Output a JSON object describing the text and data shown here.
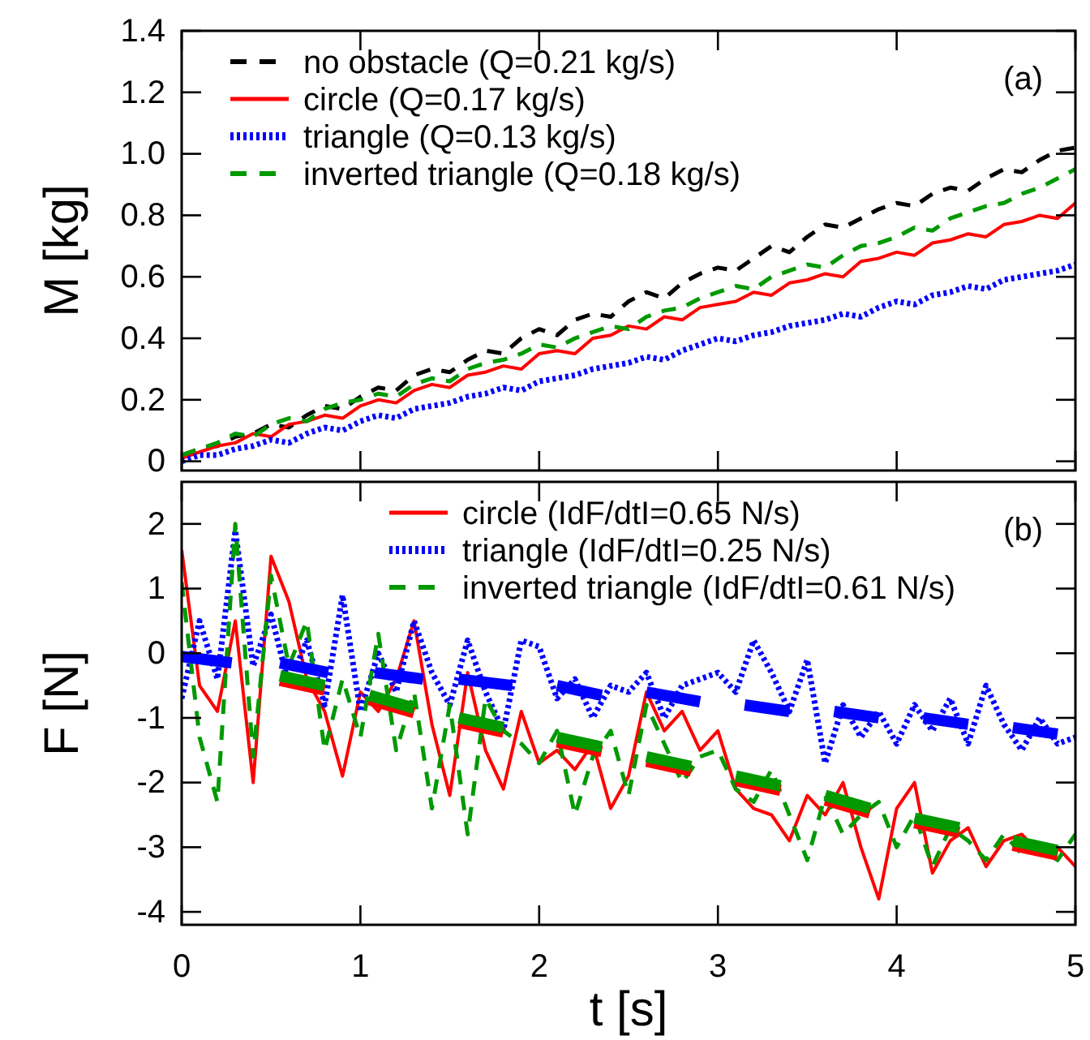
{
  "chart_data": [
    {
      "type": "line",
      "ylabel": "M [kg]",
      "annotations": [
        "(a)"
      ],
      "legend": "top left",
      "grid": false,
      "tick_labels": "y",
      "xlim": [
        0,
        5
      ],
      "xticks": [
        0,
        1,
        2,
        3,
        4,
        5
      ],
      "ylim": [
        -0.03,
        1.4
      ],
      "yticks": [
        0,
        {
          "value": 0.2,
          "label": "0.2"
        },
        {
          "value": 0.4,
          "label": "0.4"
        },
        {
          "value": 0.6,
          "label": "0.6"
        },
        {
          "value": 0.8,
          "label": "0.8"
        },
        {
          "value": 1,
          "label": "1.0"
        },
        {
          "value": 1.2,
          "label": "1.2"
        },
        {
          "value": 1.4,
          "label": "1.4"
        }
      ],
      "x": [
        0,
        0.1,
        0.2,
        0.3,
        0.4,
        0.5,
        0.6,
        0.7,
        0.8,
        0.9,
        1,
        1.1,
        1.2,
        1.3,
        1.4,
        1.5,
        1.6,
        1.7,
        1.8,
        1.9,
        2,
        2.1,
        2.2,
        2.3,
        2.4,
        2.5,
        2.6,
        2.7,
        2.8,
        2.9,
        3,
        3.1,
        3.2,
        3.3,
        3.4,
        3.5,
        3.6,
        3.7,
        3.8,
        3.9,
        4,
        4.1,
        4.2,
        4.3,
        4.4,
        4.5,
        4.6,
        4.7,
        4.8,
        4.9,
        5
      ],
      "series": [
        {
          "name": "no obstacle (Q=0.21 kg/s)",
          "color": "#000000",
          "line_style": "dashed",
          "values": [
            0.02,
            0.04,
            0.05,
            0.08,
            0.09,
            0.12,
            0.11,
            0.15,
            0.18,
            0.17,
            0.21,
            0.24,
            0.23,
            0.28,
            0.3,
            0.29,
            0.33,
            0.36,
            0.35,
            0.4,
            0.43,
            0.41,
            0.46,
            0.48,
            0.47,
            0.52,
            0.55,
            0.53,
            0.58,
            0.61,
            0.63,
            0.62,
            0.66,
            0.7,
            0.68,
            0.73,
            0.77,
            0.76,
            0.79,
            0.82,
            0.84,
            0.83,
            0.87,
            0.89,
            0.88,
            0.92,
            0.95,
            0.94,
            0.98,
            1.01,
            1.02
          ]
        },
        {
          "name": "circle (Q=0.17 kg/s)",
          "color": "#ff0000",
          "line_style": "solid",
          "values": [
            0.01,
            0.03,
            0.05,
            0.06,
            0.09,
            0.08,
            0.12,
            0.13,
            0.15,
            0.14,
            0.18,
            0.2,
            0.19,
            0.23,
            0.25,
            0.24,
            0.28,
            0.29,
            0.31,
            0.3,
            0.35,
            0.36,
            0.35,
            0.4,
            0.41,
            0.44,
            0.43,
            0.47,
            0.46,
            0.5,
            0.51,
            0.52,
            0.55,
            0.54,
            0.58,
            0.59,
            0.61,
            0.6,
            0.65,
            0.66,
            0.68,
            0.67,
            0.71,
            0.72,
            0.74,
            0.73,
            0.77,
            0.78,
            0.8,
            0.79,
            0.84
          ]
        },
        {
          "name": "triangle (Q=0.13 kg/s)",
          "color": "#0000ff",
          "line_style": "dotted",
          "values": [
            0.0,
            0.02,
            0.02,
            0.04,
            0.05,
            0.07,
            0.06,
            0.09,
            0.11,
            0.1,
            0.13,
            0.15,
            0.14,
            0.17,
            0.18,
            0.19,
            0.21,
            0.22,
            0.24,
            0.23,
            0.26,
            0.27,
            0.28,
            0.3,
            0.31,
            0.32,
            0.34,
            0.33,
            0.36,
            0.38,
            0.4,
            0.39,
            0.41,
            0.42,
            0.44,
            0.45,
            0.46,
            0.48,
            0.47,
            0.5,
            0.52,
            0.51,
            0.54,
            0.55,
            0.57,
            0.56,
            0.59,
            0.6,
            0.61,
            0.62,
            0.64
          ]
        },
        {
          "name": "inverted triangle (Q=0.18 kg/s)",
          "color": "#009900",
          "line_style": "dashed",
          "values": [
            0.02,
            0.04,
            0.06,
            0.09,
            0.08,
            0.12,
            0.14,
            0.13,
            0.17,
            0.19,
            0.2,
            0.22,
            0.21,
            0.25,
            0.27,
            0.26,
            0.3,
            0.32,
            0.33,
            0.35,
            0.38,
            0.37,
            0.4,
            0.42,
            0.44,
            0.43,
            0.47,
            0.49,
            0.5,
            0.53,
            0.55,
            0.57,
            0.56,
            0.6,
            0.62,
            0.64,
            0.63,
            0.67,
            0.7,
            0.71,
            0.73,
            0.76,
            0.75,
            0.79,
            0.81,
            0.83,
            0.84,
            0.87,
            0.89,
            0.92,
            0.95
          ]
        }
      ]
    },
    {
      "type": "line",
      "xlabel": "t [s]",
      "ylabel": "F [N]",
      "annotations": [
        "(b)"
      ],
      "legend": "top",
      "grid": false,
      "xlim": [
        0,
        5
      ],
      "xticks": [
        0,
        1,
        2,
        3,
        4,
        5
      ],
      "ylim": [
        -4.2,
        2.65
      ],
      "yticks": [
        -4,
        -3,
        -2,
        -1,
        0,
        1,
        2
      ],
      "x": [
        0,
        0.1,
        0.2,
        0.3,
        0.4,
        0.5,
        0.6,
        0.7,
        0.8,
        0.9,
        1,
        1.1,
        1.2,
        1.3,
        1.4,
        1.5,
        1.6,
        1.7,
        1.8,
        1.9,
        2,
        2.1,
        2.2,
        2.3,
        2.4,
        2.5,
        2.6,
        2.7,
        2.8,
        2.9,
        3,
        3.1,
        3.2,
        3.3,
        3.4,
        3.5,
        3.6,
        3.7,
        3.8,
        3.9,
        4,
        4.1,
        4.2,
        4.3,
        4.4,
        4.5,
        4.6,
        4.7,
        4.8,
        4.9,
        5
      ],
      "series": [
        {
          "name": "circle (IdF/dtI=0.65 N/s)",
          "color": "#ff0000",
          "line_style": "solid",
          "values": [
            1.6,
            -0.5,
            -0.9,
            0.5,
            -2.0,
            1.5,
            0.8,
            -0.4,
            -0.9,
            -1.9,
            -0.6,
            -0.9,
            -0.4,
            0.5,
            -1.1,
            -2.2,
            -0.3,
            -1.5,
            -2.1,
            -0.9,
            -1.7,
            -1.5,
            -1.8,
            -1.4,
            -2.4,
            -1.9,
            -0.6,
            -1.2,
            -0.9,
            -1.5,
            -1.2,
            -2.1,
            -2.4,
            -2.5,
            -2.9,
            -2.2,
            -2.5,
            -2.0,
            -3.0,
            -3.8,
            -2.4,
            -2.0,
            -3.4,
            -2.9,
            -2.7,
            -3.3,
            -2.9,
            -2.8,
            -3.1,
            -3.0,
            -3.3
          ]
        },
        {
          "name": "triangle (IdF/dtI=0.25 N/s)",
          "color": "#0000ff",
          "line_style": "dotted",
          "values": [
            -0.7,
            0.5,
            -0.4,
            1.9,
            -0.2,
            0.6,
            -0.5,
            0.2,
            -0.8,
            0.9,
            -0.9,
            0.0,
            -0.6,
            0.5,
            -0.3,
            -0.8,
            0.2,
            -0.6,
            -1.2,
            0.2,
            0.1,
            -0.7,
            -0.4,
            -1.0,
            -0.5,
            -0.6,
            -0.3,
            -1.0,
            -0.5,
            -0.4,
            -0.3,
            -0.6,
            0.2,
            -0.3,
            -0.9,
            -0.1,
            -1.7,
            -0.8,
            -1.3,
            -0.9,
            -1.4,
            -0.8,
            -1.2,
            -0.7,
            -1.4,
            -0.5,
            -1.1,
            -1.5,
            -1.0,
            -1.4,
            -1.3
          ]
        },
        {
          "name": "inverted triangle (IdF/dtI=0.61 N/s)",
          "color": "#009900",
          "line_style": "dashed",
          "values": [
            1.1,
            -1.3,
            -2.3,
            2.0,
            -1.6,
            1.2,
            -0.2,
            0.5,
            -1.5,
            -0.4,
            -1.3,
            0.3,
            -1.5,
            -0.6,
            -2.4,
            -0.8,
            -2.8,
            -0.7,
            -1.2,
            -1.4,
            -1.7,
            -1.2,
            -2.5,
            -1.6,
            -1.2,
            -2.2,
            -0.8,
            -1.4,
            -2.0,
            -1.6,
            -1.5,
            -2.1,
            -2.3,
            -1.8,
            -2.5,
            -3.2,
            -2.2,
            -2.8,
            -2.5,
            -2.3,
            -3.0,
            -2.5,
            -3.3,
            -2.7,
            -2.9,
            -3.2,
            -2.8,
            -3.1,
            -3.0,
            -3.2,
            -2.8
          ]
        },
        {
          "color": "#0000ff",
          "line_style": "solid",
          "x": [
            0,
            0.28,
            0.4,
            0.55,
            0.82,
            0.9,
            1.08,
            1.35,
            1.45,
            1.55,
            1.85,
            2,
            2.1,
            2.35,
            2.5,
            2.6,
            2.9,
            3,
            3.15,
            3.4,
            3.5,
            3.65,
            3.9,
            4,
            4.15,
            4.4,
            4.5,
            4.65,
            4.9
          ],
          "values": [
            -0.05,
            -0.15,
            null,
            -0.15,
            -0.3,
            null,
            -0.3,
            -0.4,
            null,
            -0.4,
            -0.5,
            null,
            -0.5,
            -0.65,
            null,
            -0.6,
            -0.75,
            null,
            -0.8,
            -0.9,
            null,
            -0.9,
            -1.0,
            null,
            -1.0,
            -1.1,
            null,
            -1.15,
            -1.25
          ]
        },
        {
          "color": "#ff0000",
          "line_style": "solid",
          "x": [
            0.55,
            0.8,
            0.9,
            1.05,
            1.3,
            1.45,
            1.55,
            1.8,
            2,
            2.1,
            2.35,
            2.5,
            2.6,
            2.85,
            3,
            3.1,
            3.35,
            3.5,
            3.6,
            3.85,
            4,
            4.1,
            4.35,
            4.5,
            4.65,
            4.9
          ],
          "values": [
            -0.42,
            -0.57,
            null,
            -0.72,
            -0.92,
            null,
            -1.07,
            -1.22,
            null,
            -1.37,
            -1.52,
            null,
            -1.67,
            -1.82,
            null,
            -1.97,
            -2.12,
            null,
            -2.27,
            -2.47,
            null,
            -2.62,
            -2.77,
            null,
            -2.97,
            -3.12
          ]
        },
        {
          "color": "#009900",
          "line_style": "solid",
          "x": [
            0.55,
            0.8,
            0.9,
            1.05,
            1.3,
            1.45,
            1.55,
            1.8,
            2,
            2.1,
            2.35,
            2.5,
            2.6,
            2.85,
            3,
            3.1,
            3.35,
            3.5,
            3.6,
            3.85,
            4,
            4.1,
            4.35,
            4.5,
            4.65,
            4.9
          ],
          "values": [
            -0.35,
            -0.5,
            null,
            -0.65,
            -0.85,
            null,
            -1.0,
            -1.15,
            null,
            -1.3,
            -1.45,
            null,
            -1.6,
            -1.75,
            null,
            -1.9,
            -2.05,
            null,
            -2.2,
            -2.4,
            null,
            -2.55,
            -2.7,
            null,
            -2.9,
            -3.05
          ]
        }
      ]
    }
  ]
}
